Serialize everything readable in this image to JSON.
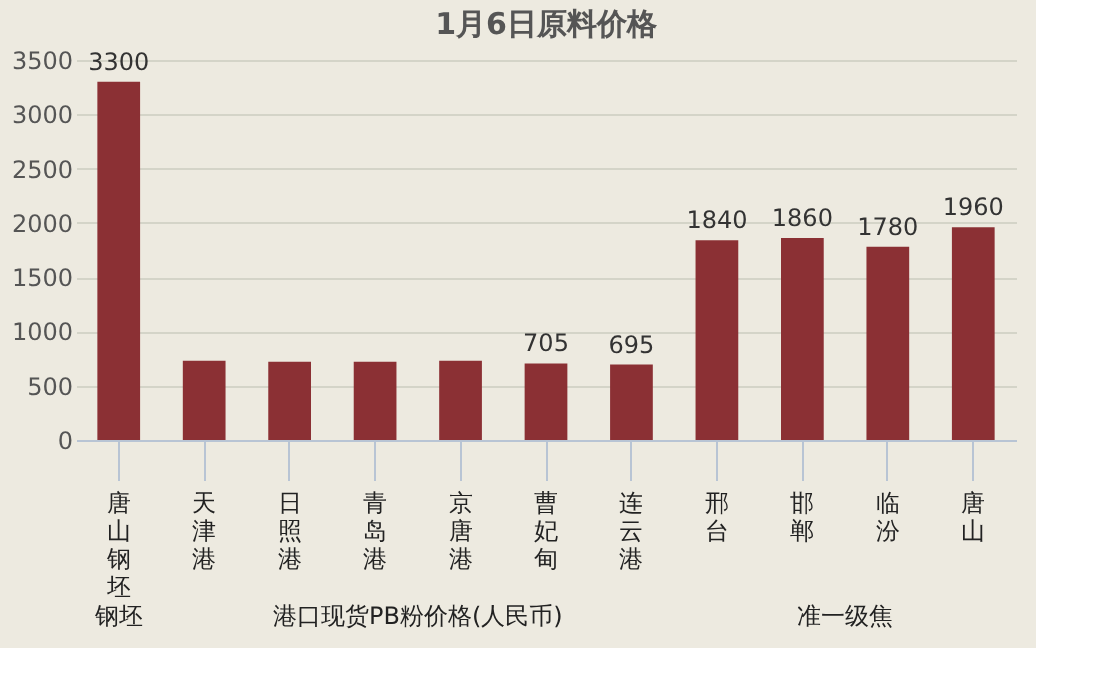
{
  "chart_data": {
    "type": "bar",
    "title": "1月6日原料价格",
    "categories": [
      "唐山钢坯",
      "天津港",
      "日照港",
      "青岛港",
      "京唐港",
      "曹妃甸",
      "连云港",
      "邢台",
      "邯郸",
      "临汾",
      "唐山"
    ],
    "series": [
      {
        "color": "#8b3034",
        "values": [
          3300,
          730,
          720,
          720,
          730,
          705,
          695,
          1840,
          1860,
          1780,
          1960
        ],
        "value_labels": [
          "3300",
          null,
          null,
          null,
          null,
          "705",
          "695",
          "1840",
          "1860",
          "1780",
          "1960"
        ]
      }
    ],
    "ylim": [
      0,
      3500
    ],
    "yticks": [
      0,
      500,
      1000,
      1500,
      2000,
      2500,
      3000,
      3500
    ],
    "grid": "y",
    "legend": false,
    "annotations": [
      "钢坯",
      "港口现货PB粉价格(人民币)",
      "准一级焦"
    ]
  }
}
